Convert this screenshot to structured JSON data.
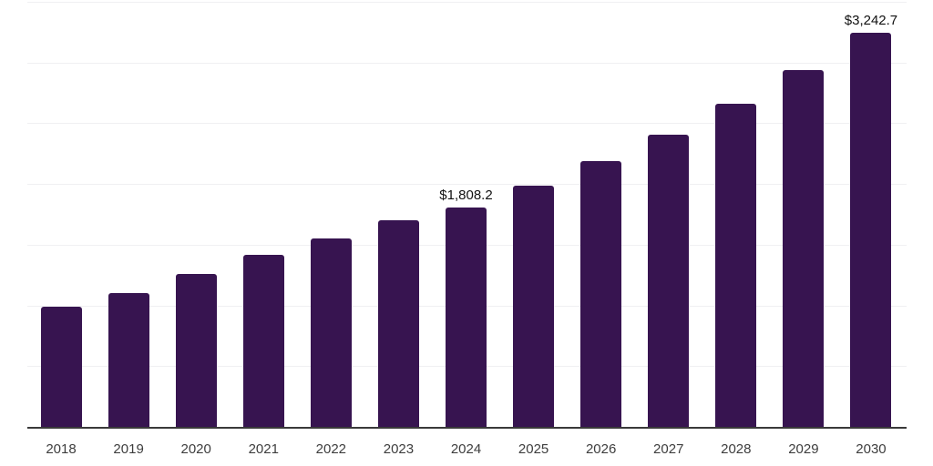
{
  "chart_data": {
    "type": "bar",
    "title": "",
    "xlabel": "",
    "ylabel": "",
    "legend": "none",
    "grid": "horizontal",
    "ylim": [
      0,
      3500
    ],
    "gridline_step": 500,
    "categories": [
      "2018",
      "2019",
      "2020",
      "2021",
      "2022",
      "2023",
      "2024",
      "2025",
      "2026",
      "2027",
      "2028",
      "2029",
      "2030"
    ],
    "values": [
      990,
      1103,
      1261,
      1418,
      1553,
      1703,
      1808.2,
      1983,
      2191,
      2408,
      2663,
      2941,
      3242.7
    ],
    "value_prefix": "$",
    "annotations": [
      {
        "category_index": 6,
        "category": "2024",
        "text": "$1,808.2"
      },
      {
        "category_index": 12,
        "category": "2030",
        "text": "$3,242.7"
      }
    ]
  },
  "colors": {
    "bar": "#371450",
    "gridline": "#f0f0f2",
    "axis_line": "#3a3a3a",
    "tick_label": "#3d3d3d",
    "value_label": "#111111",
    "background": "#ffffff"
  }
}
